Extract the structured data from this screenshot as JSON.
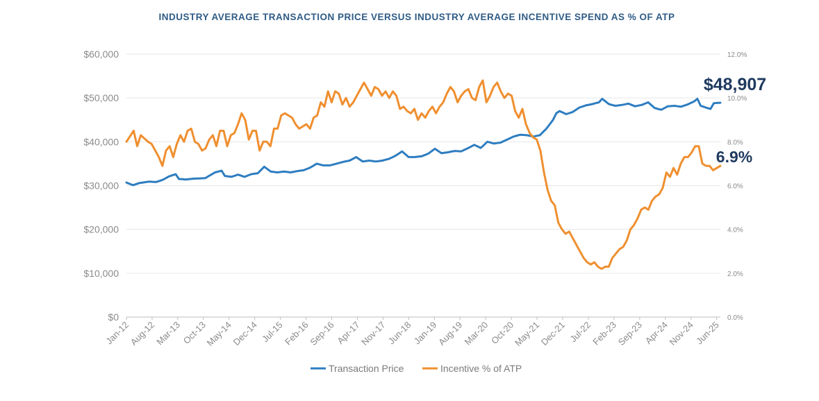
{
  "chart_data": {
    "type": "line",
    "title": "INDUSTRY AVERAGE TRANSACTION PRICE VERSUS INDUSTRY AVERAGE INCENTIVE SPEND AS % OF ATP",
    "x_tick_labels": [
      "Jan-12",
      "Aug-12",
      "Mar-13",
      "Oct-13",
      "May-14",
      "Dec-14",
      "Jul-15",
      "Feb-16",
      "Sep-16",
      "Apr-17",
      "Nov-17",
      "Jun-18",
      "Jan-19",
      "Aug-19",
      "Mar-20",
      "Oct-20",
      "May-21",
      "Dec-21",
      "Jul-22",
      "Feb-23",
      "Sep-23",
      "Apr-24",
      "Nov-24",
      "Jun-25"
    ],
    "y_left": {
      "ticks": [
        "$0",
        "$10,000",
        "$20,000",
        "$30,000",
        "$40,000",
        "$50,000",
        "$60,000"
      ],
      "ylim": [
        0,
        60000
      ]
    },
    "y_right": {
      "ticks": [
        "0.0%",
        "2.0%",
        "4.0%",
        "6.0%",
        "8.0%",
        "10.0%",
        "12.0%"
      ],
      "ylim": [
        0,
        12
      ]
    },
    "colors": {
      "transaction": "#2e7dc0",
      "incentive": "#ef8f2f",
      "grid": "#e6e6e6",
      "axis": "#bdbdbd"
    },
    "series": [
      {
        "name": "Transaction Price",
        "axis": "left",
        "anchors": [
          [
            0,
            30700
          ],
          [
            2,
            30100
          ],
          [
            4,
            30600
          ],
          [
            7,
            30900
          ],
          [
            9,
            30800
          ],
          [
            11,
            31300
          ],
          [
            13,
            32100
          ],
          [
            15,
            32600
          ],
          [
            16,
            31500
          ],
          [
            18,
            31400
          ],
          [
            21,
            31600
          ],
          [
            24,
            31700
          ],
          [
            27,
            33000
          ],
          [
            29,
            33400
          ],
          [
            30,
            32200
          ],
          [
            32,
            32000
          ],
          [
            34,
            32500
          ],
          [
            36,
            32000
          ],
          [
            38,
            32600
          ],
          [
            40,
            32800
          ],
          [
            42,
            34300
          ],
          [
            44,
            33200
          ],
          [
            46,
            33000
          ],
          [
            48,
            33200
          ],
          [
            50,
            33000
          ],
          [
            52,
            33300
          ],
          [
            54,
            33500
          ],
          [
            56,
            34100
          ],
          [
            58,
            35000
          ],
          [
            60,
            34600
          ],
          [
            62,
            34600
          ],
          [
            64,
            35000
          ],
          [
            66,
            35400
          ],
          [
            68,
            35700
          ],
          [
            70,
            36500
          ],
          [
            72,
            35500
          ],
          [
            74,
            35700
          ],
          [
            76,
            35500
          ],
          [
            78,
            35700
          ],
          [
            80,
            36100
          ],
          [
            82,
            36800
          ],
          [
            84,
            37800
          ],
          [
            86,
            36500
          ],
          [
            88,
            36500
          ],
          [
            90,
            36700
          ],
          [
            92,
            37300
          ],
          [
            94,
            38400
          ],
          [
            96,
            37400
          ],
          [
            98,
            37600
          ],
          [
            100,
            37900
          ],
          [
            102,
            37800
          ],
          [
            104,
            38500
          ],
          [
            106,
            39300
          ],
          [
            108,
            38600
          ],
          [
            110,
            40000
          ],
          [
            112,
            39600
          ],
          [
            114,
            39800
          ],
          [
            116,
            40500
          ],
          [
            118,
            41200
          ],
          [
            120,
            41600
          ],
          [
            122,
            41500
          ],
          [
            124,
            41200
          ],
          [
            126,
            41500
          ],
          [
            128,
            43000
          ],
          [
            130,
            45000
          ],
          [
            131,
            46500
          ],
          [
            132,
            47000
          ],
          [
            134,
            46300
          ],
          [
            136,
            46800
          ],
          [
            138,
            47800
          ],
          [
            140,
            48300
          ],
          [
            142,
            48600
          ],
          [
            144,
            49000
          ],
          [
            145,
            49800
          ],
          [
            147,
            48600
          ],
          [
            149,
            48200
          ],
          [
            151,
            48400
          ],
          [
            153,
            48700
          ],
          [
            155,
            48100
          ],
          [
            157,
            48400
          ],
          [
            159,
            49000
          ],
          [
            161,
            47700
          ],
          [
            163,
            47300
          ],
          [
            165,
            48100
          ],
          [
            167,
            48200
          ],
          [
            169,
            48000
          ],
          [
            171,
            48500
          ],
          [
            173,
            49200
          ],
          [
            174,
            49800
          ],
          [
            175,
            48200
          ],
          [
            177,
            47700
          ],
          [
            178,
            47500
          ],
          [
            179,
            48800
          ],
          [
            181,
            48907
          ]
        ]
      },
      {
        "name": "Incentive % of ATP",
        "axis": "right",
        "anchors": [
          [
            0,
            8.0
          ],
          [
            2,
            8.5
          ],
          [
            3,
            7.8
          ],
          [
            4,
            8.3
          ],
          [
            6,
            8.0
          ],
          [
            7,
            7.9
          ],
          [
            9,
            7.3
          ],
          [
            10,
            6.9
          ],
          [
            11,
            7.6
          ],
          [
            12,
            7.8
          ],
          [
            13,
            7.3
          ],
          [
            14,
            7.9
          ],
          [
            15,
            8.3
          ],
          [
            16,
            8.0
          ],
          [
            17,
            8.5
          ],
          [
            18,
            8.6
          ],
          [
            19,
            8.0
          ],
          [
            20,
            7.9
          ],
          [
            21,
            7.6
          ],
          [
            22,
            7.7
          ],
          [
            23,
            8.1
          ],
          [
            24,
            8.3
          ],
          [
            25,
            7.8
          ],
          [
            26,
            8.5
          ],
          [
            27,
            8.5
          ],
          [
            28,
            7.8
          ],
          [
            29,
            8.3
          ],
          [
            30,
            8.4
          ],
          [
            31,
            8.8
          ],
          [
            32,
            9.3
          ],
          [
            33,
            9.0
          ],
          [
            34,
            8.1
          ],
          [
            35,
            8.5
          ],
          [
            36,
            8.5
          ],
          [
            37,
            7.6
          ],
          [
            38,
            8.0
          ],
          [
            39,
            8.0
          ],
          [
            40,
            7.8
          ],
          [
            41,
            8.6
          ],
          [
            42,
            8.6
          ],
          [
            43,
            9.2
          ],
          [
            44,
            9.3
          ],
          [
            45,
            9.2
          ],
          [
            46,
            9.1
          ],
          [
            47,
            8.8
          ],
          [
            48,
            8.6
          ],
          [
            49,
            8.7
          ],
          [
            50,
            8.8
          ],
          [
            51,
            8.6
          ],
          [
            52,
            9.1
          ],
          [
            53,
            9.2
          ],
          [
            54,
            9.8
          ],
          [
            55,
            9.6
          ],
          [
            56,
            10.3
          ],
          [
            57,
            9.8
          ],
          [
            58,
            10.3
          ],
          [
            59,
            10.2
          ],
          [
            60,
            9.7
          ],
          [
            61,
            10.0
          ],
          [
            62,
            9.6
          ],
          [
            63,
            9.8
          ],
          [
            64,
            10.1
          ],
          [
            65,
            10.4
          ],
          [
            66,
            10.7
          ],
          [
            67,
            10.4
          ],
          [
            68,
            10.1
          ],
          [
            69,
            10.5
          ],
          [
            70,
            10.4
          ],
          [
            71,
            10.1
          ],
          [
            72,
            10.3
          ],
          [
            73,
            10.0
          ],
          [
            74,
            10.3
          ],
          [
            75,
            10.1
          ],
          [
            76,
            9.5
          ],
          [
            77,
            9.6
          ],
          [
            78,
            9.4
          ],
          [
            79,
            9.3
          ],
          [
            80,
            9.5
          ],
          [
            81,
            9.0
          ],
          [
            82,
            9.3
          ],
          [
            83,
            9.1
          ],
          [
            84,
            9.4
          ],
          [
            85,
            9.6
          ],
          [
            86,
            9.3
          ],
          [
            87,
            9.6
          ],
          [
            88,
            9.8
          ],
          [
            89,
            10.2
          ],
          [
            90,
            10.5
          ],
          [
            91,
            10.3
          ],
          [
            92,
            9.8
          ],
          [
            93,
            10.1
          ],
          [
            94,
            10.3
          ],
          [
            95,
            10.4
          ],
          [
            96,
            10.0
          ],
          [
            97,
            9.9
          ],
          [
            98,
            10.5
          ],
          [
            99,
            10.8
          ],
          [
            100,
            9.8
          ],
          [
            101,
            10.1
          ],
          [
            102,
            10.5
          ],
          [
            103,
            10.7
          ],
          [
            104,
            10.3
          ],
          [
            105,
            10.0
          ],
          [
            106,
            10.2
          ],
          [
            107,
            10.1
          ],
          [
            108,
            9.4
          ],
          [
            109,
            9.1
          ],
          [
            110,
            9.5
          ],
          [
            111,
            8.8
          ],
          [
            112,
            8.4
          ],
          [
            113,
            8.2
          ],
          [
            114,
            8.1
          ],
          [
            115,
            7.6
          ],
          [
            116,
            6.6
          ],
          [
            117,
            5.8
          ],
          [
            118,
            5.3
          ],
          [
            119,
            5.1
          ],
          [
            120,
            4.3
          ],
          [
            121,
            4.0
          ],
          [
            122,
            3.8
          ],
          [
            123,
            3.9
          ],
          [
            124,
            3.6
          ],
          [
            125,
            3.3
          ],
          [
            126,
            3.0
          ],
          [
            127,
            2.7
          ],
          [
            128,
            2.5
          ],
          [
            129,
            2.4
          ],
          [
            130,
            2.5
          ],
          [
            131,
            2.3
          ],
          [
            132,
            2.2
          ],
          [
            133,
            2.3
          ],
          [
            134,
            2.3
          ],
          [
            135,
            2.7
          ],
          [
            136,
            2.9
          ],
          [
            137,
            3.1
          ],
          [
            138,
            3.2
          ],
          [
            139,
            3.5
          ],
          [
            140,
            4.0
          ],
          [
            141,
            4.2
          ],
          [
            142,
            4.5
          ],
          [
            143,
            4.9
          ],
          [
            144,
            5.0
          ],
          [
            145,
            4.9
          ],
          [
            146,
            5.3
          ],
          [
            147,
            5.5
          ],
          [
            148,
            5.6
          ],
          [
            149,
            5.9
          ],
          [
            150,
            6.6
          ],
          [
            151,
            6.4
          ],
          [
            152,
            6.8
          ],
          [
            153,
            6.5
          ],
          [
            154,
            7.0
          ],
          [
            155,
            7.3
          ],
          [
            156,
            7.3
          ],
          [
            157,
            7.5
          ],
          [
            158,
            7.8
          ],
          [
            159,
            7.8
          ],
          [
            160,
            7.0
          ],
          [
            161,
            6.9
          ],
          [
            162,
            6.9
          ],
          [
            163,
            6.7
          ],
          [
            164,
            6.8
          ],
          [
            165,
            6.9
          ]
        ]
      }
    ],
    "annotations": {
      "transaction_last": "$48,907",
      "incentive_last": "6.9%"
    },
    "legend": {
      "position": "bottom-center",
      "items": [
        "Transaction Price",
        "Incentive % of ATP"
      ]
    }
  }
}
